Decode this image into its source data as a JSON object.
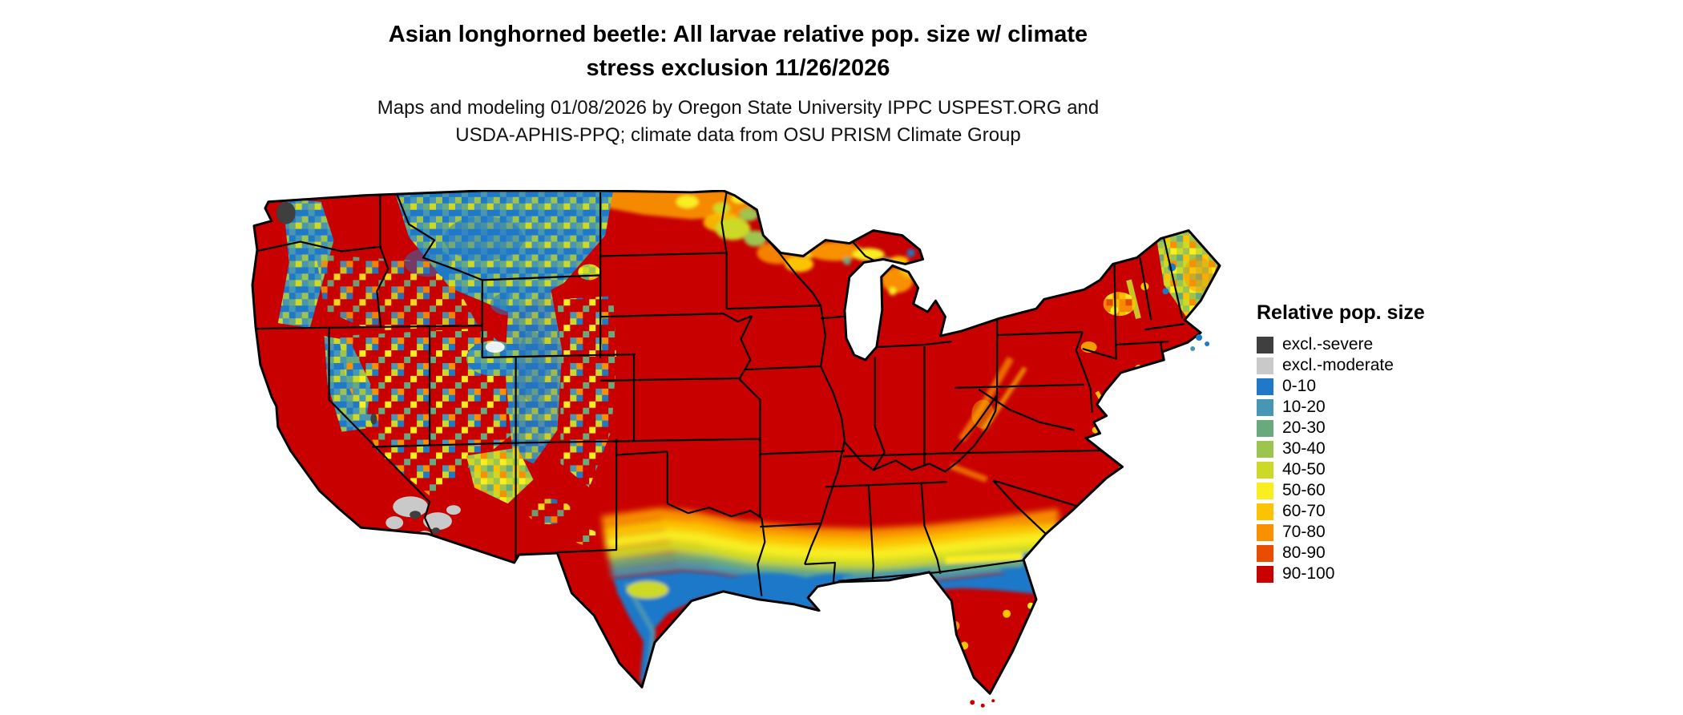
{
  "title": {
    "line1": "Asian longhorned beetle: All larvae relative pop. size w/ climate",
    "line2": "stress exclusion 11/26/2026"
  },
  "subtitle": {
    "line1": "Maps and modeling 01/08/2026 by Oregon State University IPPC USPEST.ORG and",
    "line2": "USDA-APHIS-PPQ; climate data from OSU PRISM Climate Group"
  },
  "map": {
    "region": "Continental United States",
    "dominant_category": "90-100"
  },
  "legend": {
    "title": "Relative pop. size",
    "items": [
      {
        "key": "sev",
        "label": "excl.-severe",
        "color": "#3f3f3f"
      },
      {
        "key": "mod",
        "label": "excl.-moderate",
        "color": "#c9c9c9"
      },
      {
        "key": "b010",
        "label": "0-10",
        "color": "#1f78c8"
      },
      {
        "key": "b1020",
        "label": "10-20",
        "color": "#4696b4"
      },
      {
        "key": "b2030",
        "label": "20-30",
        "color": "#69aa7d"
      },
      {
        "key": "b3040",
        "label": "30-40",
        "color": "#9cc44f"
      },
      {
        "key": "b4050",
        "label": "40-50",
        "color": "#ccd926"
      },
      {
        "key": "b5060",
        "label": "50-60",
        "color": "#f8ee20"
      },
      {
        "key": "b6070",
        "label": "60-70",
        "color": "#fcc400"
      },
      {
        "key": "b7080",
        "label": "70-80",
        "color": "#f89000"
      },
      {
        "key": "b8090",
        "label": "80-90",
        "color": "#e84e00"
      },
      {
        "key": "b90100",
        "label": "90-100",
        "color": "#c80000"
      }
    ]
  }
}
